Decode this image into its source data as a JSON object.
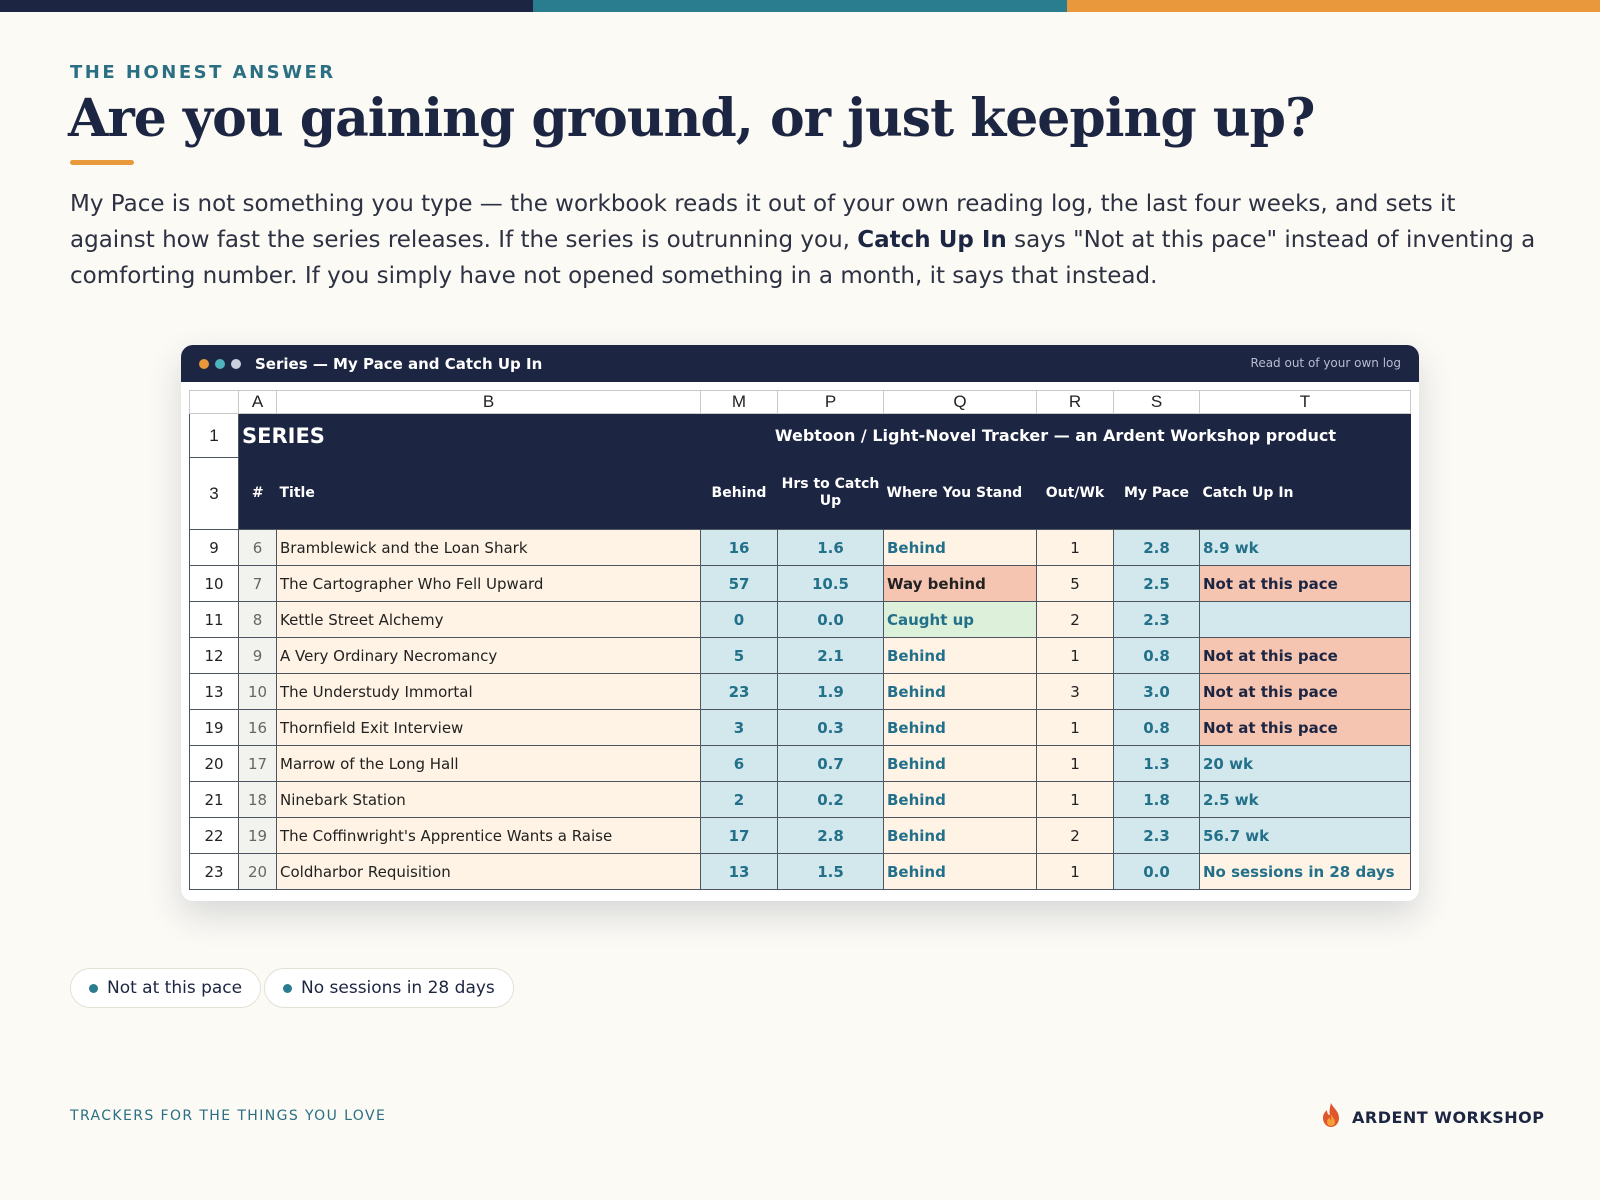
{
  "colors": {
    "navy": "#1c2541",
    "teal": "#2a7d8f",
    "orange": "#e9983c",
    "cream": "#fef3e4",
    "light_blue": "#d3e8ec",
    "salmon": "#f6c5b2",
    "mint": "#dcf0da"
  },
  "eyebrow": "THE HONEST ANSWER",
  "headline": "Are you gaining ground, or just keeping up?",
  "body": {
    "part1": "My Pace is not something you type — the workbook reads it out of your own reading log, the last four weeks, and sets it against how fast the series releases. If the series is outrunning you, ",
    "bold": "Catch Up In",
    "part2": " says \"Not at this pace\" instead of inventing a comforting number. If you simply have not opened something in a month, it says that instead."
  },
  "window": {
    "title": "Series — My Pace and Catch Up In",
    "note": "Read out of your own log",
    "dots": [
      "#e9983c",
      "#4fb3bf",
      "#c9cfdc"
    ]
  },
  "sheet": {
    "col_letters": [
      "A",
      "B",
      "M",
      "P",
      "Q",
      "R",
      "S",
      "T"
    ],
    "row1": {
      "num": "1",
      "label": "SERIES",
      "banner": "Webtoon / Light-Novel Tracker — an Ardent Workshop product"
    },
    "row3": {
      "num": "3",
      "headers": [
        "#",
        "Title",
        "Behind",
        "Hrs to Catch Up",
        "Where You Stand",
        "Out/Wk",
        "My Pace",
        "Catch Up In"
      ]
    },
    "rows": [
      {
        "row": "9",
        "n": "6",
        "title": "Bramblewick and the Loan Shark",
        "behind": "16",
        "hrs": "1.6",
        "stand": "Behind",
        "out": "1",
        "pace": "2.8",
        "catch": "8.9 wk"
      },
      {
        "row": "10",
        "n": "7",
        "title": "The Cartographer Who Fell Upward",
        "behind": "57",
        "hrs": "10.5",
        "stand": "Way behind",
        "out": "5",
        "pace": "2.5",
        "catch": "Not at this pace"
      },
      {
        "row": "11",
        "n": "8",
        "title": "Kettle Street Alchemy",
        "behind": "0",
        "hrs": "0.0",
        "stand": "Caught up",
        "out": "2",
        "pace": "2.3",
        "catch": ""
      },
      {
        "row": "12",
        "n": "9",
        "title": "A Very Ordinary Necromancy",
        "behind": "5",
        "hrs": "2.1",
        "stand": "Behind",
        "out": "1",
        "pace": "0.8",
        "catch": "Not at this pace"
      },
      {
        "row": "13",
        "n": "10",
        "title": "The Understudy Immortal",
        "behind": "23",
        "hrs": "1.9",
        "stand": "Behind",
        "out": "3",
        "pace": "3.0",
        "catch": "Not at this pace"
      },
      {
        "row": "19",
        "n": "16",
        "title": "Thornfield Exit Interview",
        "behind": "3",
        "hrs": "0.3",
        "stand": "Behind",
        "out": "1",
        "pace": "0.8",
        "catch": "Not at this pace"
      },
      {
        "row": "20",
        "n": "17",
        "title": "Marrow of the Long Hall",
        "behind": "6",
        "hrs": "0.7",
        "stand": "Behind",
        "out": "1",
        "pace": "1.3",
        "catch": "20 wk"
      },
      {
        "row": "21",
        "n": "18",
        "title": "Ninebark Station",
        "behind": "2",
        "hrs": "0.2",
        "stand": "Behind",
        "out": "1",
        "pace": "1.8",
        "catch": "2.5 wk"
      },
      {
        "row": "22",
        "n": "19",
        "title": "The Coffinwright's Apprentice Wants a Raise",
        "behind": "17",
        "hrs": "2.8",
        "stand": "Behind",
        "out": "2",
        "pace": "2.3",
        "catch": "56.7 wk"
      },
      {
        "row": "23",
        "n": "20",
        "title": "Coldharbor Requisition",
        "behind": "13",
        "hrs": "1.5",
        "stand": "Behind",
        "out": "1",
        "pace": "0.0",
        "catch": "No sessions in 28 days"
      }
    ]
  },
  "chips": [
    "Not at this pace",
    "No sessions in 28 days"
  ],
  "footer": {
    "tagline": "TRACKERS FOR THE THINGS YOU LOVE",
    "brand": "ARDENT WORKSHOP",
    "brand_icon": "flame-icon"
  }
}
